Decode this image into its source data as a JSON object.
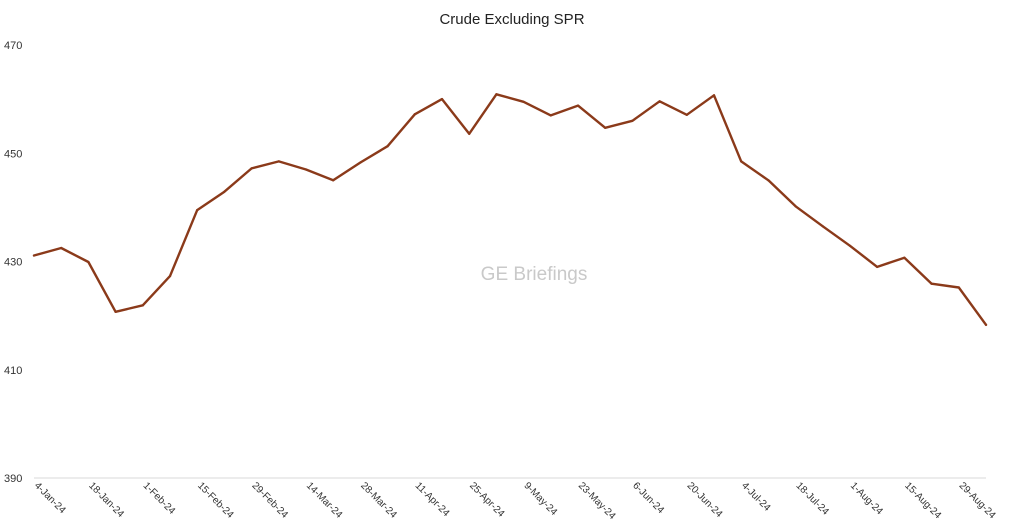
{
  "chart_data": {
    "type": "line",
    "title": "Crude Excluding SPR",
    "xlabel": "",
    "ylabel": "",
    "ylim": [
      390,
      470
    ],
    "yticks": [
      390,
      410,
      430,
      450,
      470
    ],
    "grid": false,
    "legend": "none",
    "watermark": "GE Briefings",
    "line_color": "#8B3A1A",
    "x": [
      "4-Jan-24",
      "11-Jan-24",
      "18-Jan-24",
      "25-Jan-24",
      "1-Feb-24",
      "8-Feb-24",
      "15-Feb-24",
      "22-Feb-24",
      "29-Feb-24",
      "7-Mar-24",
      "14-Mar-24",
      "21-Mar-24",
      "28-Mar-24",
      "4-Apr-24",
      "11-Apr-24",
      "18-Apr-24",
      "25-Apr-24",
      "2-May-24",
      "9-May-24",
      "16-May-24",
      "23-May-24",
      "30-May-24",
      "6-Jun-24",
      "13-Jun-24",
      "20-Jun-24",
      "27-Jun-24",
      "4-Jul-24",
      "11-Jul-24",
      "18-Jul-24",
      "25-Jul-24",
      "1-Aug-24",
      "8-Aug-24",
      "15-Aug-24",
      "22-Aug-24",
      "29-Aug-24",
      "5-Sep-24"
    ],
    "x_tick_labels": [
      "4-Jan-24",
      "18-Jan-24",
      "1-Feb-24",
      "15-Feb-24",
      "29-Feb-24",
      "14-Mar-24",
      "28-Mar-24",
      "11-Apr-24",
      "25-Apr-24",
      "9-May-24",
      "23-May-24",
      "6-Jun-24",
      "20-Jun-24",
      "4-Jul-24",
      "18-Jul-24",
      "1-Aug-24",
      "15-Aug-24",
      "29-Aug-24"
    ],
    "series": [
      {
        "values": [
          431.1,
          432.5,
          429.9,
          420.7,
          421.9,
          427.3,
          439.5,
          442.9,
          447.2,
          448.5,
          447.0,
          445.0,
          448.3,
          451.3,
          457.2,
          460.0,
          453.6,
          460.9,
          459.5,
          457.0,
          458.8,
          454.7,
          456.0,
          459.6,
          457.1,
          460.7,
          448.5,
          445.0,
          440.2,
          436.5,
          432.9,
          429.0,
          430.7,
          425.9,
          425.2,
          418.3
        ]
      }
    ]
  }
}
